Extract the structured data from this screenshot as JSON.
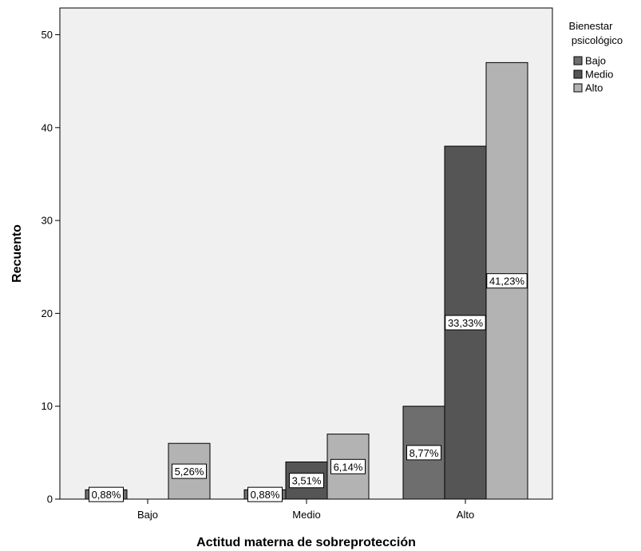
{
  "chart_data": {
    "type": "bar",
    "xlabel": "Actitud materna de sobreprotección",
    "ylabel": "Recuento",
    "categories": [
      "Bajo",
      "Medio",
      "Alto"
    ],
    "ylim": [
      0,
      50
    ],
    "yticks": [
      0,
      10,
      20,
      30,
      40,
      50
    ],
    "grid": false,
    "legend": {
      "title_lines": [
        "Bienestar",
        "psicológico"
      ],
      "placement": "right-top"
    },
    "series": [
      {
        "name": "Bajo",
        "color": "#6e6e6e",
        "values": [
          1,
          1,
          10
        ],
        "labels": [
          "0,88%",
          "0,88%",
          "8,77%"
        ]
      },
      {
        "name": "Medio",
        "color": "#555555",
        "values": [
          0,
          4,
          38
        ],
        "labels": [
          "",
          "3,51%",
          "33,33%"
        ]
      },
      {
        "name": "Alto",
        "color": "#b3b3b3",
        "values": [
          6,
          7,
          47
        ],
        "labels": [
          "5,26%",
          "6,14%",
          "41,23%"
        ]
      }
    ],
    "plot_background": "#f0f0f0"
  }
}
